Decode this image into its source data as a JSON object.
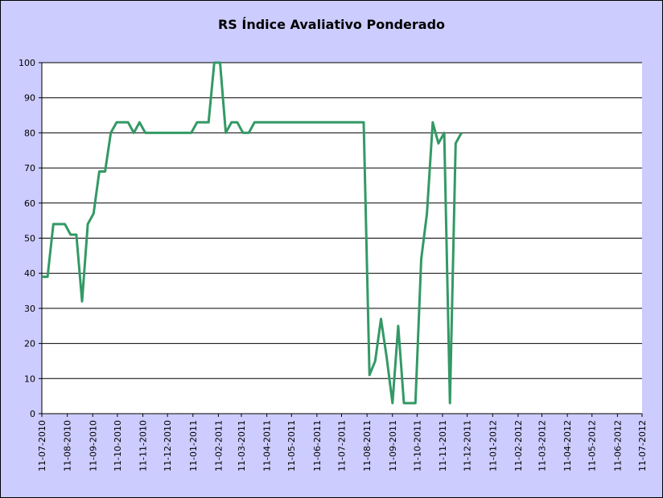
{
  "chart_data": {
    "type": "line",
    "title": "RS Índice Avaliativo Ponderado",
    "xlabel": "",
    "ylabel": "",
    "ylim": [
      0,
      100
    ],
    "yticks": [
      0,
      10,
      20,
      30,
      40,
      50,
      60,
      70,
      80,
      90,
      100
    ],
    "xlim": [
      "2010-07-11",
      "2012-07-11"
    ],
    "xtick_labels": [
      "11-07-2010",
      "11-08-2010",
      "11-09-2010",
      "11-10-2010",
      "11-11-2010",
      "11-12-2010",
      "11-01-2011",
      "11-02-2011",
      "11-03-2011",
      "11-04-2011",
      "11-05-2011",
      "11-06-2011",
      "11-07-2011",
      "11-08-2011",
      "11-09-2011",
      "11-10-2011",
      "11-11-2011",
      "11-12-2011",
      "11-01-2012",
      "11-02-2012",
      "11-03-2012",
      "11-04-2012",
      "11-05-2012",
      "11-06-2012",
      "11-07-2012"
    ],
    "grid": "horizontal",
    "legend": "none",
    "colors": {
      "line": "#339966",
      "plot_bg": "#ffffff",
      "chart_bg": "#ccccff",
      "grid": "#000000"
    },
    "series": [
      {
        "x": [
          "2010-07-11",
          "2010-07-18",
          "2010-07-25",
          "2010-08-01",
          "2010-08-08",
          "2010-08-15",
          "2010-08-22",
          "2010-08-29",
          "2010-09-05",
          "2010-09-12",
          "2010-09-19",
          "2010-09-26",
          "2010-10-03",
          "2010-10-10",
          "2010-10-17",
          "2010-10-24",
          "2010-10-31",
          "2010-11-07",
          "2010-11-14",
          "2010-11-21",
          "2010-11-28",
          "2010-12-05",
          "2010-12-12",
          "2010-12-19",
          "2010-12-26",
          "2011-01-02",
          "2011-01-09",
          "2011-01-16",
          "2011-01-23",
          "2011-01-30",
          "2011-02-06",
          "2011-02-13",
          "2011-02-20",
          "2011-02-27",
          "2011-03-06",
          "2011-03-13",
          "2011-03-20",
          "2011-03-27",
          "2011-04-03",
          "2011-04-10",
          "2011-04-17",
          "2011-04-24",
          "2011-05-01",
          "2011-05-08",
          "2011-05-15",
          "2011-05-22",
          "2011-05-29",
          "2011-06-05",
          "2011-06-12",
          "2011-06-19",
          "2011-06-26",
          "2011-07-03",
          "2011-07-10",
          "2011-07-17",
          "2011-07-24",
          "2011-07-31",
          "2011-08-07",
          "2011-08-14",
          "2011-08-21",
          "2011-08-28",
          "2011-09-04",
          "2011-09-11",
          "2011-09-18",
          "2011-09-25",
          "2011-10-02",
          "2011-10-09",
          "2011-10-16",
          "2011-10-23",
          "2011-10-30",
          "2011-11-06",
          "2011-11-13",
          "2011-11-20",
          "2011-11-27",
          "2011-12-04"
        ],
        "values": [
          39,
          39,
          54,
          54,
          54,
          51,
          51,
          32,
          54,
          57,
          69,
          69,
          80,
          83,
          83,
          83,
          80,
          83,
          80,
          80,
          80,
          80,
          80,
          80,
          80,
          80,
          80,
          83,
          83,
          83,
          100,
          100,
          80,
          83,
          83,
          80,
          80,
          83,
          83,
          83,
          83,
          83,
          83,
          83,
          83,
          83,
          83,
          83,
          83,
          83,
          83,
          83,
          83,
          83,
          83,
          83,
          83,
          11,
          15,
          27,
          16,
          3,
          25,
          3,
          3,
          3,
          44,
          57,
          83,
          77,
          80,
          3,
          77,
          80
        ]
      }
    ]
  }
}
